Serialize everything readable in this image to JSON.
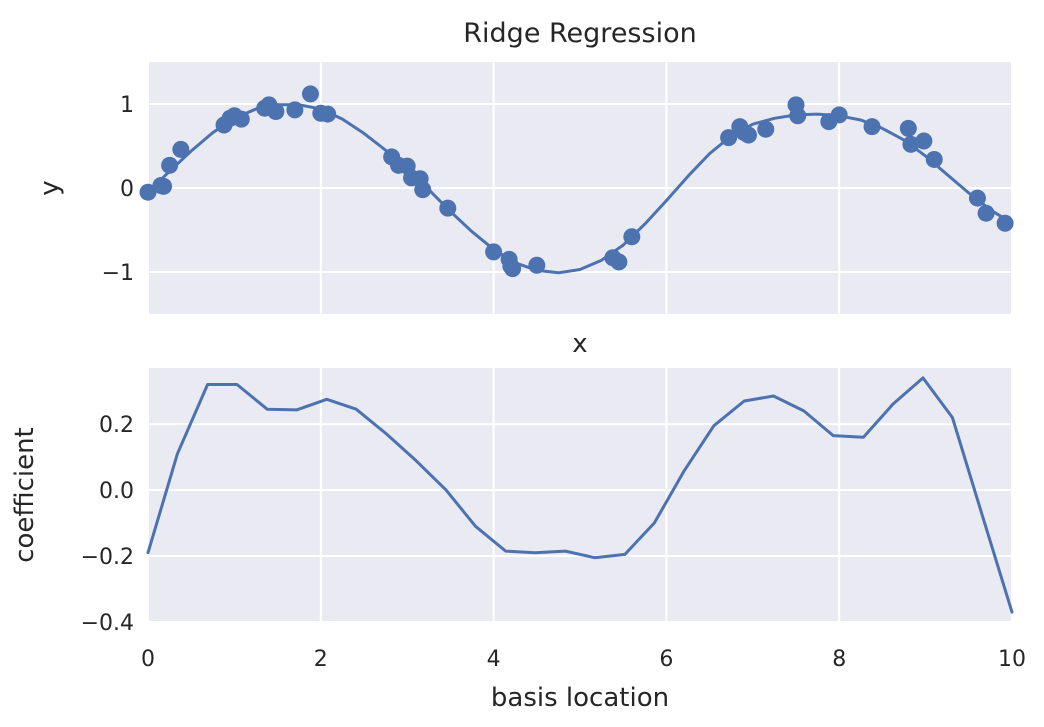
{
  "chart_data": [
    {
      "type": "scatter",
      "title": "Ridge Regression",
      "xlabel": "x",
      "ylabel": "y",
      "xlim": [
        0,
        10
      ],
      "ylim": [
        -1.5,
        1.5
      ],
      "xticks": [
        0,
        2,
        4,
        6,
        8,
        10
      ],
      "show_xtick_labels": false,
      "yticks": [
        -1,
        0,
        1
      ],
      "ytick_labels": [
        "−1",
        "0",
        "1"
      ],
      "grid": true,
      "background": "#eaeaf2",
      "series": [
        {
          "kind": "points",
          "color": "#4c72b0",
          "points": [
            [
              0.0,
              -0.05
            ],
            [
              0.15,
              0.03
            ],
            [
              0.18,
              0.02
            ],
            [
              0.25,
              0.27
            ],
            [
              0.38,
              0.46
            ],
            [
              0.88,
              0.75
            ],
            [
              0.95,
              0.83
            ],
            [
              1.0,
              0.86
            ],
            [
              1.08,
              0.82
            ],
            [
              1.35,
              0.95
            ],
            [
              1.4,
              0.99
            ],
            [
              1.48,
              0.91
            ],
            [
              1.7,
              0.93
            ],
            [
              1.88,
              1.12
            ],
            [
              2.0,
              0.89
            ],
            [
              2.08,
              0.88
            ],
            [
              2.82,
              0.37
            ],
            [
              2.9,
              0.27
            ],
            [
              3.0,
              0.26
            ],
            [
              3.05,
              0.12
            ],
            [
              3.15,
              0.11
            ],
            [
              3.18,
              -0.02
            ],
            [
              3.47,
              -0.24
            ],
            [
              4.0,
              -0.76
            ],
            [
              4.18,
              -0.85
            ],
            [
              4.2,
              -0.93
            ],
            [
              4.22,
              -0.96
            ],
            [
              4.5,
              -0.92
            ],
            [
              5.38,
              -0.83
            ],
            [
              5.45,
              -0.88
            ],
            [
              5.6,
              -0.58
            ],
            [
              6.72,
              0.6
            ],
            [
              6.85,
              0.73
            ],
            [
              6.9,
              0.66
            ],
            [
              6.95,
              0.63
            ],
            [
              7.15,
              0.7
            ],
            [
              7.5,
              0.99
            ],
            [
              7.52,
              0.86
            ],
            [
              7.88,
              0.79
            ],
            [
              8.0,
              0.87
            ],
            [
              8.38,
              0.73
            ],
            [
              8.8,
              0.71
            ],
            [
              8.83,
              0.52
            ],
            [
              8.98,
              0.56
            ],
            [
              9.1,
              0.34
            ],
            [
              9.6,
              -0.12
            ],
            [
              9.7,
              -0.3
            ],
            [
              9.92,
              -0.42
            ]
          ]
        },
        {
          "kind": "line",
          "color": "#4c72b0",
          "points": [
            [
              0.0,
              -0.05
            ],
            [
              0.25,
              0.2
            ],
            [
              0.5,
              0.44
            ],
            [
              0.75,
              0.66
            ],
            [
              1.0,
              0.83
            ],
            [
              1.25,
              0.94
            ],
            [
              1.5,
              0.99
            ],
            [
              1.75,
              0.99
            ],
            [
              2.0,
              0.94
            ],
            [
              2.25,
              0.82
            ],
            [
              2.5,
              0.65
            ],
            [
              2.75,
              0.45
            ],
            [
              3.0,
              0.22
            ],
            [
              3.25,
              -0.02
            ],
            [
              3.5,
              -0.28
            ],
            [
              3.75,
              -0.52
            ],
            [
              4.0,
              -0.73
            ],
            [
              4.25,
              -0.89
            ],
            [
              4.5,
              -0.98
            ],
            [
              4.75,
              -1.01
            ],
            [
              5.0,
              -0.97
            ],
            [
              5.25,
              -0.86
            ],
            [
              5.5,
              -0.68
            ],
            [
              5.75,
              -0.43
            ],
            [
              6.0,
              -0.15
            ],
            [
              6.25,
              0.14
            ],
            [
              6.5,
              0.41
            ],
            [
              6.75,
              0.62
            ],
            [
              7.0,
              0.76
            ],
            [
              7.25,
              0.83
            ],
            [
              7.5,
              0.87
            ],
            [
              7.75,
              0.88
            ],
            [
              8.0,
              0.86
            ],
            [
              8.25,
              0.81
            ],
            [
              8.5,
              0.71
            ],
            [
              8.75,
              0.57
            ],
            [
              9.0,
              0.38
            ],
            [
              9.25,
              0.16
            ],
            [
              9.5,
              -0.06
            ],
            [
              9.75,
              -0.26
            ],
            [
              10.0,
              -0.42
            ]
          ]
        }
      ]
    },
    {
      "type": "line",
      "title": "",
      "xlabel": "basis location",
      "ylabel": "coefficient",
      "xlim": [
        0,
        10
      ],
      "ylim": [
        -0.4,
        0.37
      ],
      "xticks": [
        0,
        2,
        4,
        6,
        8,
        10
      ],
      "xtick_labels": [
        "0",
        "2",
        "4",
        "6",
        "8",
        "10"
      ],
      "yticks": [
        -0.4,
        -0.2,
        0.0,
        0.2
      ],
      "ytick_labels": [
        "−0.4",
        "−0.2",
        "0.0",
        "0.2"
      ],
      "grid": true,
      "background": "#eaeaf2",
      "series": [
        {
          "kind": "line",
          "color": "#4c72b0",
          "x": [
            0.0,
            0.34,
            0.69,
            1.03,
            1.38,
            1.72,
            2.07,
            2.41,
            2.76,
            3.1,
            3.45,
            3.79,
            4.14,
            4.48,
            4.83,
            5.17,
            5.52,
            5.86,
            6.21,
            6.55,
            6.9,
            7.24,
            7.59,
            7.93,
            8.28,
            8.62,
            8.97,
            9.31,
            9.66,
            10.0
          ],
          "y": [
            -0.19,
            0.11,
            0.32,
            0.32,
            0.245,
            0.243,
            0.275,
            0.245,
            0.17,
            0.09,
            0.0,
            -0.11,
            -0.185,
            -0.19,
            -0.185,
            -0.205,
            -0.195,
            -0.1,
            0.06,
            0.195,
            0.27,
            0.285,
            0.24,
            0.165,
            0.16,
            0.26,
            0.34,
            0.22,
            -0.08,
            -0.37
          ]
        }
      ]
    }
  ]
}
